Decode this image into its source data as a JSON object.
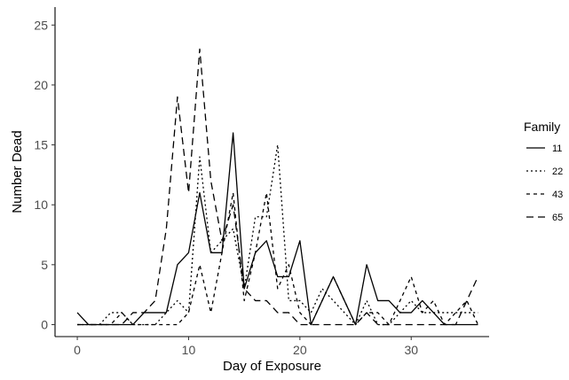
{
  "chart_data": {
    "type": "line",
    "xlabel": "Day of Exposure",
    "ylabel": "Number Dead",
    "xlim": [
      -2,
      37
    ],
    "ylim": [
      -1,
      26.5
    ],
    "xticks": [
      0,
      10,
      20,
      30
    ],
    "yticks": [
      0,
      5,
      10,
      15,
      20,
      25
    ],
    "grid": false,
    "legend": {
      "title": "Family",
      "position": "right"
    },
    "series": [
      {
        "name": "11",
        "linetype": "solid",
        "x": [
          0,
          1,
          2,
          3,
          4,
          5,
          6,
          7,
          8,
          9,
          10,
          11,
          12,
          13,
          14,
          15,
          16,
          17,
          18,
          19,
          20,
          21,
          22,
          23,
          24,
          25,
          26,
          27,
          28,
          29,
          30,
          31,
          32,
          33,
          34,
          35,
          36
        ],
        "values": [
          1,
          0,
          0,
          0,
          0,
          0,
          1,
          1,
          1,
          5,
          6,
          11,
          6,
          6,
          16,
          3,
          6,
          7,
          4,
          4,
          7,
          0,
          2,
          4,
          2,
          0,
          5,
          2,
          2,
          1,
          1,
          2,
          1,
          0,
          0,
          0,
          0
        ]
      },
      {
        "name": "22",
        "linetype": "dotted",
        "x": [
          0,
          1,
          2,
          3,
          4,
          5,
          6,
          7,
          8,
          9,
          10,
          11,
          12,
          13,
          14,
          15,
          16,
          17,
          18,
          19,
          20,
          21,
          22,
          23,
          24,
          25,
          26,
          27,
          28,
          29,
          30,
          31,
          32,
          33,
          34,
          35,
          36
        ],
        "values": [
          0,
          0,
          0,
          1,
          1,
          0,
          0,
          0,
          1,
          2,
          1,
          14,
          6,
          7,
          8,
          3,
          9,
          9,
          15,
          2,
          2,
          1,
          3,
          2,
          1,
          0,
          2,
          0,
          0,
          1,
          2,
          1,
          1,
          1,
          1,
          1,
          1
        ]
      },
      {
        "name": "43",
        "linetype": "dashed",
        "x": [
          0,
          1,
          2,
          3,
          4,
          5,
          6,
          7,
          8,
          9,
          10,
          11,
          12,
          13,
          14,
          15,
          16,
          17,
          18,
          19,
          20,
          21,
          22,
          23,
          24,
          25,
          26,
          27,
          28,
          29,
          30,
          31,
          32,
          33,
          34,
          35,
          36
        ],
        "values": [
          0,
          0,
          0,
          0,
          1,
          0,
          0,
          0,
          0,
          0,
          1,
          5,
          1,
          6,
          11,
          2,
          6,
          11,
          3,
          5,
          1,
          0,
          2,
          4,
          2,
          0,
          1,
          1,
          0,
          2,
          4,
          1,
          2,
          0,
          1,
          2,
          0
        ]
      },
      {
        "name": "65",
        "linetype": "longdash",
        "x": [
          0,
          1,
          2,
          3,
          4,
          5,
          6,
          7,
          8,
          9,
          10,
          11,
          12,
          13,
          14,
          15,
          16,
          17,
          18,
          19,
          20,
          21,
          22,
          23,
          24,
          25,
          26,
          27,
          28,
          29,
          30,
          31,
          32,
          33,
          34,
          35,
          36
        ],
        "values": [
          0,
          0,
          0,
          0,
          0,
          1,
          1,
          2,
          8,
          19,
          11,
          23,
          12,
          7,
          10,
          3,
          2,
          2,
          1,
          1,
          0,
          0,
          0,
          0,
          0,
          0,
          1,
          0,
          0,
          0,
          0,
          0,
          0,
          0,
          0,
          2,
          4
        ]
      }
    ]
  }
}
